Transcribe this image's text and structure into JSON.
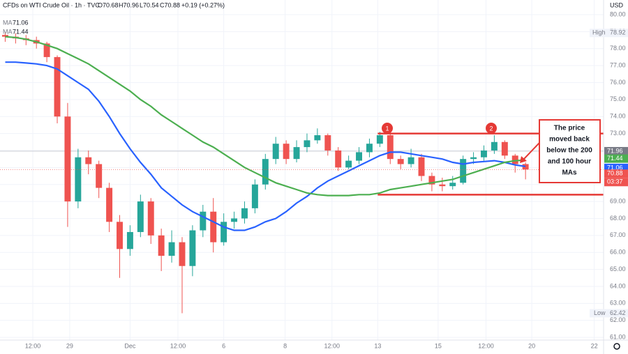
{
  "chart_data": {
    "type": "candlestick",
    "title": "CFDs on WTI Crude Oil · 1h · TVC",
    "ohlc_legend": [
      "O70.68",
      "H70.96",
      "L70.54",
      "C70.88",
      "+0.19 (+0.27%)"
    ],
    "currency": "USD",
    "up_color": "#26a69a",
    "down_color": "#ef5350",
    "candles": [
      {
        "open": 78.8,
        "high": 78.95,
        "low": 78.4,
        "close": 78.7
      },
      {
        "open": 78.7,
        "high": 78.9,
        "low": 78.3,
        "close": 78.6
      },
      {
        "open": 78.6,
        "high": 78.8,
        "low": 78.2,
        "close": 78.5
      },
      {
        "open": 78.5,
        "high": 78.7,
        "low": 78.0,
        "close": 78.3
      },
      {
        "open": 78.3,
        "high": 78.4,
        "low": 77.2,
        "close": 77.5
      },
      {
        "open": 77.5,
        "high": 77.6,
        "low": 73.6,
        "close": 74.0
      },
      {
        "open": 74.0,
        "high": 74.8,
        "low": 67.5,
        "close": 69.0
      },
      {
        "open": 69.0,
        "high": 72.1,
        "low": 68.6,
        "close": 71.6
      },
      {
        "open": 71.6,
        "high": 72.0,
        "low": 70.6,
        "close": 71.2
      },
      {
        "open": 71.2,
        "high": 71.4,
        "low": 69.2,
        "close": 69.8
      },
      {
        "open": 69.8,
        "high": 70.1,
        "low": 67.2,
        "close": 67.8
      },
      {
        "open": 67.8,
        "high": 68.2,
        "low": 64.5,
        "close": 66.2
      },
      {
        "open": 66.2,
        "high": 67.6,
        "low": 65.8,
        "close": 67.2
      },
      {
        "open": 67.2,
        "high": 69.4,
        "low": 66.9,
        "close": 69.0
      },
      {
        "open": 69.0,
        "high": 69.2,
        "low": 66.5,
        "close": 67.0
      },
      {
        "open": 67.0,
        "high": 67.4,
        "low": 64.9,
        "close": 65.8
      },
      {
        "open": 65.8,
        "high": 67.3,
        "low": 65.4,
        "close": 66.6
      },
      {
        "open": 66.6,
        "high": 66.9,
        "low": 62.42,
        "close": 65.2
      },
      {
        "open": 65.2,
        "high": 67.6,
        "low": 64.6,
        "close": 67.3
      },
      {
        "open": 67.3,
        "high": 68.8,
        "low": 66.9,
        "close": 68.4
      },
      {
        "open": 68.4,
        "high": 69.2,
        "low": 66.0,
        "close": 66.6
      },
      {
        "open": 66.6,
        "high": 68.3,
        "low": 66.4,
        "close": 67.8
      },
      {
        "open": 67.8,
        "high": 68.4,
        "low": 67.4,
        "close": 68.0
      },
      {
        "open": 68.0,
        "high": 69.0,
        "low": 67.7,
        "close": 68.6
      },
      {
        "open": 68.6,
        "high": 70.3,
        "low": 68.3,
        "close": 70.0
      },
      {
        "open": 70.0,
        "high": 71.8,
        "low": 69.7,
        "close": 71.5
      },
      {
        "open": 71.5,
        "high": 72.8,
        "low": 71.2,
        "close": 72.4
      },
      {
        "open": 72.4,
        "high": 72.6,
        "low": 71.2,
        "close": 71.5
      },
      {
        "open": 71.5,
        "high": 72.6,
        "low": 71.3,
        "close": 72.2
      },
      {
        "open": 72.2,
        "high": 73.0,
        "low": 71.9,
        "close": 72.6
      },
      {
        "open": 72.6,
        "high": 73.3,
        "low": 72.4,
        "close": 72.9
      },
      {
        "open": 72.9,
        "high": 73.0,
        "low": 71.7,
        "close": 72.0
      },
      {
        "open": 72.0,
        "high": 72.2,
        "low": 70.8,
        "close": 71.0
      },
      {
        "open": 71.0,
        "high": 71.7,
        "low": 70.9,
        "close": 71.4
      },
      {
        "open": 71.4,
        "high": 72.2,
        "low": 71.2,
        "close": 71.9
      },
      {
        "open": 71.9,
        "high": 72.7,
        "low": 71.6,
        "close": 72.4
      },
      {
        "open": 72.4,
        "high": 73.1,
        "low": 72.2,
        "close": 72.9
      },
      {
        "open": 72.9,
        "high": 73.0,
        "low": 71.2,
        "close": 71.5
      },
      {
        "open": 71.5,
        "high": 71.7,
        "low": 70.9,
        "close": 71.2
      },
      {
        "open": 71.2,
        "high": 72.1,
        "low": 71.0,
        "close": 71.6
      },
      {
        "open": 71.6,
        "high": 71.8,
        "low": 70.2,
        "close": 70.5
      },
      {
        "open": 70.5,
        "high": 70.7,
        "low": 69.6,
        "close": 70.0
      },
      {
        "open": 70.0,
        "high": 70.4,
        "low": 69.6,
        "close": 69.9
      },
      {
        "open": 69.9,
        "high": 70.5,
        "low": 69.7,
        "close": 70.1
      },
      {
        "open": 70.1,
        "high": 71.7,
        "low": 70.0,
        "close": 71.5
      },
      {
        "open": 71.5,
        "high": 71.9,
        "low": 71.2,
        "close": 71.6
      },
      {
        "open": 71.6,
        "high": 72.3,
        "low": 71.4,
        "close": 72.0
      },
      {
        "open": 72.0,
        "high": 72.9,
        "low": 71.8,
        "close": 72.5
      },
      {
        "open": 72.5,
        "high": 72.6,
        "low": 71.5,
        "close": 71.7
      },
      {
        "open": 71.7,
        "high": 71.8,
        "low": 70.7,
        "close": 71.2
      },
      {
        "open": 71.2,
        "high": 71.3,
        "low": 70.3,
        "close": 70.88
      }
    ],
    "series": [
      {
        "name": "MA",
        "color": "#2962ff",
        "values": [
          77.2,
          77.2,
          77.15,
          77.1,
          77.0,
          76.8,
          76.4,
          76.0,
          75.6,
          74.9,
          74.0,
          73.0,
          72.1,
          71.3,
          70.6,
          69.8,
          69.3,
          68.8,
          68.4,
          68.1,
          67.8,
          67.5,
          67.3,
          67.3,
          67.5,
          67.8,
          68.0,
          68.4,
          68.9,
          69.3,
          69.8,
          70.2,
          70.5,
          70.8,
          71.1,
          71.4,
          71.7,
          71.9,
          71.9,
          71.8,
          71.7,
          71.6,
          71.5,
          71.3,
          71.2,
          71.3,
          71.35,
          71.4,
          71.3,
          71.15,
          71.06
        ]
      },
      {
        "name": "MA",
        "color": "#4caf50",
        "values": [
          78.7,
          78.65,
          78.55,
          78.4,
          78.2,
          78.0,
          77.7,
          77.4,
          77.1,
          76.7,
          76.3,
          75.9,
          75.5,
          75.0,
          74.6,
          74.1,
          73.7,
          73.3,
          72.9,
          72.5,
          72.2,
          71.8,
          71.4,
          71.0,
          70.7,
          70.4,
          70.1,
          69.9,
          69.7,
          69.5,
          69.4,
          69.35,
          69.35,
          69.35,
          69.4,
          69.4,
          69.5,
          69.7,
          69.8,
          69.9,
          70.0,
          70.1,
          70.2,
          70.3,
          70.5,
          70.7,
          70.9,
          71.1,
          71.3,
          71.4,
          71.44
        ]
      }
    ],
    "xlim": [
      0,
      58
    ],
    "xticks": [
      {
        "value": 3.15,
        "label": "12:00"
      },
      {
        "value": 6.7,
        "label": "29"
      },
      {
        "value": 12.5,
        "label": "Dec"
      },
      {
        "value": 17.1,
        "label": "12:00"
      },
      {
        "value": 21.5,
        "label": "6"
      },
      {
        "value": 27.4,
        "label": "8"
      },
      {
        "value": 31.9,
        "label": "12:00"
      },
      {
        "value": 36.3,
        "label": "13"
      },
      {
        "value": 42.1,
        "label": "15"
      },
      {
        "value": 46.7,
        "label": "12:00"
      },
      {
        "value": 51.1,
        "label": "20"
      },
      {
        "value": 57.1,
        "label": "22"
      }
    ],
    "ylim": [
      60.84,
      80.86
    ],
    "yticks": [
      {
        "value": 61,
        "label": "61.00"
      },
      {
        "value": 62,
        "label": "62.00"
      },
      {
        "value": 63,
        "label": "63.00"
      },
      {
        "value": 64,
        "label": "64.00"
      },
      {
        "value": 65,
        "label": "65.00"
      },
      {
        "value": 66,
        "label": "66.00"
      },
      {
        "value": 67,
        "label": "67.00"
      },
      {
        "value": 68,
        "label": "68.00"
      },
      {
        "value": 69,
        "label": "69.00"
      },
      {
        "value": 70,
        "label": "70.00"
      },
      {
        "value": 71,
        "label": "71.00"
      },
      {
        "value": 72,
        "label": "72.00"
      },
      {
        "value": 73,
        "label": "73.00"
      },
      {
        "value": 74,
        "label": "74.00"
      },
      {
        "value": 75,
        "label": "75.00"
      },
      {
        "value": 76,
        "label": "76.00"
      },
      {
        "value": 77,
        "label": "77.00"
      },
      {
        "value": 78,
        "label": "78.00"
      },
      {
        "value": 79,
        "label": "79.00"
      },
      {
        "value": 80,
        "label": "80.00"
      }
    ],
    "grid": true,
    "high_label": "High",
    "high_value": 78.92,
    "low_label": "Low",
    "low_value": 62.42,
    "reference_price": 71.96,
    "countdown": "03:37",
    "levels": [
      73.0,
      69.4
    ],
    "level_color": "#e53935",
    "markers": [
      "1",
      "2"
    ],
    "annotation": [
      "The price",
      "moved back",
      "below the 200",
      "and 100 hour",
      "MAs"
    ]
  }
}
